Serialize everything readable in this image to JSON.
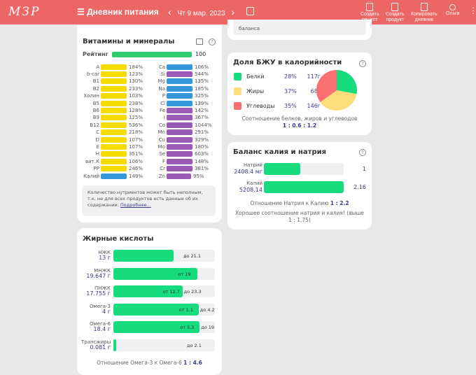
{
  "header": {
    "logo": "МЗР",
    "title": "Дневник питания",
    "date": "Чт 9 мар. 2023",
    "prev": "‹",
    "next": "›",
    "buttons": [
      {
        "l1": "Создать",
        "l2": "рецепт"
      },
      {
        "l1": "Создать",
        "l2": "продукт"
      },
      {
        "l1": "Копировать",
        "l2": "дневник"
      },
      {
        "l1": "Ольга",
        "l2": ""
      }
    ]
  },
  "prev_card": {
    "text": "баланса"
  },
  "vitamins": {
    "title": "Витамины и минералы",
    "rating_label": "Рейтинг",
    "rating_value": "100",
    "rating": 100,
    "left": [
      [
        "A",
        "184%"
      ],
      [
        "b-car",
        "123%"
      ],
      [
        "B1",
        "130%"
      ],
      [
        "B2",
        "233%"
      ],
      [
        "Холин",
        "103%"
      ],
      [
        "B5",
        "238%"
      ],
      [
        "B6",
        "128%"
      ],
      [
        "B9",
        "125%"
      ],
      [
        "B12",
        "536%"
      ],
      [
        "C",
        "218%"
      ],
      [
        "D",
        "107%"
      ],
      [
        "E",
        "107%"
      ],
      [
        "H",
        "351%"
      ],
      [
        "вит.К",
        "106%"
      ],
      [
        "PP",
        "246%"
      ],
      [
        "Калий",
        "149%"
      ]
    ],
    "right": [
      [
        "Ca",
        "106%"
      ],
      [
        "Si",
        "544%"
      ],
      [
        "Mg",
        "135%"
      ],
      [
        "Na",
        "185%"
      ],
      [
        "P",
        "325%"
      ],
      [
        "Cl",
        "139%"
      ],
      [
        "Fe",
        "142%"
      ],
      [
        "I",
        "367%"
      ],
      [
        "Co",
        "1044%"
      ],
      [
        "Mn",
        "291%"
      ],
      [
        "Cu",
        "329%"
      ],
      [
        "Mo",
        "180%"
      ],
      [
        "Se",
        "603%"
      ],
      [
        "F",
        "148%"
      ],
      [
        "Cr",
        "381%"
      ],
      [
        "Zn",
        "95%"
      ]
    ],
    "note": "Количество нутриентов может быть неполным, т.к. не для всех продуктов есть данные об их содержании.",
    "note_link": "Подробнее..."
  },
  "fatty": {
    "title": "Жирные кислоты",
    "rows": [
      {
        "name": "НЖК",
        "val": "13 г",
        "fill": 0.59,
        "a": "",
        "b": "до 21.1"
      },
      {
        "name": "МНЖК",
        "val": "19.647 г",
        "fill": 0.83,
        "a": "от 19",
        "b": ""
      },
      {
        "name": "ПНЖК",
        "val": "17.755 г",
        "fill": 0.68,
        "a": "от 12.7",
        "b": "до 23.3"
      },
      {
        "name": "Омега-3",
        "val": "4 г",
        "fill": 0.84,
        "a": "от 1.1",
        "b": "до 4.2"
      },
      {
        "name": "Омега-6",
        "val": "18.4 г",
        "fill": 0.85,
        "a": "от 5.3",
        "b": "до 19"
      },
      {
        "name": "Трансжиры",
        "val": "0.081 г",
        "fill": 0.03,
        "a": "",
        "b": "до 2.1"
      }
    ],
    "ratio_label": "Отношение Омега-3 к Омега-6",
    "ratio": "1 : 4.6"
  },
  "bju": {
    "title": "Доля БЖУ в калорийности",
    "items": [
      {
        "name": "Белки",
        "pct": "28%",
        "g": "117г",
        "color": "#17dc7e",
        "share": 28
      },
      {
        "name": "Жиры",
        "pct": "37%",
        "g": "68г",
        "color": "#fddc7a",
        "share": 37
      },
      {
        "name": "Углеводы",
        "pct": "35%",
        "g": "146г",
        "color": "#fa7070",
        "share": 35
      }
    ],
    "ratio_label": "Соотношение белков, жиров и углеводов",
    "ratio": "1 : 0.6 : 1.2"
  },
  "kna": {
    "title": "Баланс калия и натрия",
    "rows": [
      {
        "name": "Натрий",
        "val": "2408.4 мг",
        "fill": 0.46,
        "num": "1"
      },
      {
        "name": "Калий",
        "val": "5208.14",
        "fill": 1,
        "num": "2.16"
      }
    ],
    "ratio_label": "Отношение Натрия к Калию",
    "ratio": "1 : 2.2",
    "verdict": "Хорошее соотношение натрия и калия! (выше 1 : 1,75)"
  }
}
